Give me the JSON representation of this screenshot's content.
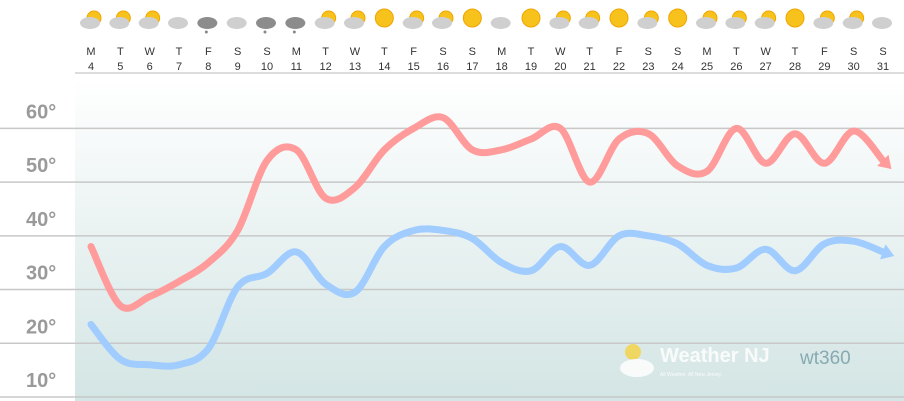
{
  "chart_data": {
    "type": "line",
    "weekdays": [
      "M",
      "T",
      "W",
      "T",
      "F",
      "S",
      "S",
      "M",
      "T",
      "W",
      "T",
      "F",
      "S",
      "S",
      "M",
      "T",
      "W",
      "T",
      "F",
      "S",
      "S",
      "M",
      "T",
      "W",
      "T",
      "F",
      "S",
      "S"
    ],
    "categories": [
      "4",
      "5",
      "6",
      "7",
      "8",
      "9",
      "10",
      "11",
      "12",
      "13",
      "14",
      "15",
      "16",
      "17",
      "18",
      "19",
      "20",
      "21",
      "22",
      "23",
      "24",
      "25",
      "26",
      "27",
      "28",
      "29",
      "30",
      "31"
    ],
    "series": [
      {
        "color": "#ff9b9b",
        "values": [
          38,
          27,
          28.7,
          31.5,
          35,
          41,
          54,
          56,
          47,
          49,
          56,
          60,
          62,
          56,
          56,
          58,
          60,
          50,
          58,
          59,
          53,
          52,
          60,
          53.5,
          59,
          53.5,
          59.5,
          54
        ]
      },
      {
        "color": "#a0ccff",
        "values": [
          23.5,
          17,
          16,
          16,
          19,
          30.5,
          33,
          37,
          31,
          29.5,
          38,
          41,
          41,
          39.5,
          35,
          33.5,
          38,
          34.5,
          40,
          40,
          38.5,
          34.5,
          34,
          37.5,
          33.5,
          38.5,
          39,
          37
        ]
      }
    ],
    "ylim": [
      10,
      69
    ],
    "yticks": [
      {
        "value": 10,
        "label": "10°"
      },
      {
        "value": 20,
        "label": "20°"
      },
      {
        "value": 30,
        "label": "30°"
      },
      {
        "value": 40,
        "label": "40°"
      },
      {
        "value": 50,
        "label": "50°"
      },
      {
        "value": 60,
        "label": "60°"
      }
    ],
    "grid": true,
    "watermark": {
      "brand": "Weather NJ",
      "tagline": "All Weather. All New Jersey.",
      "logo": "wt360"
    }
  }
}
